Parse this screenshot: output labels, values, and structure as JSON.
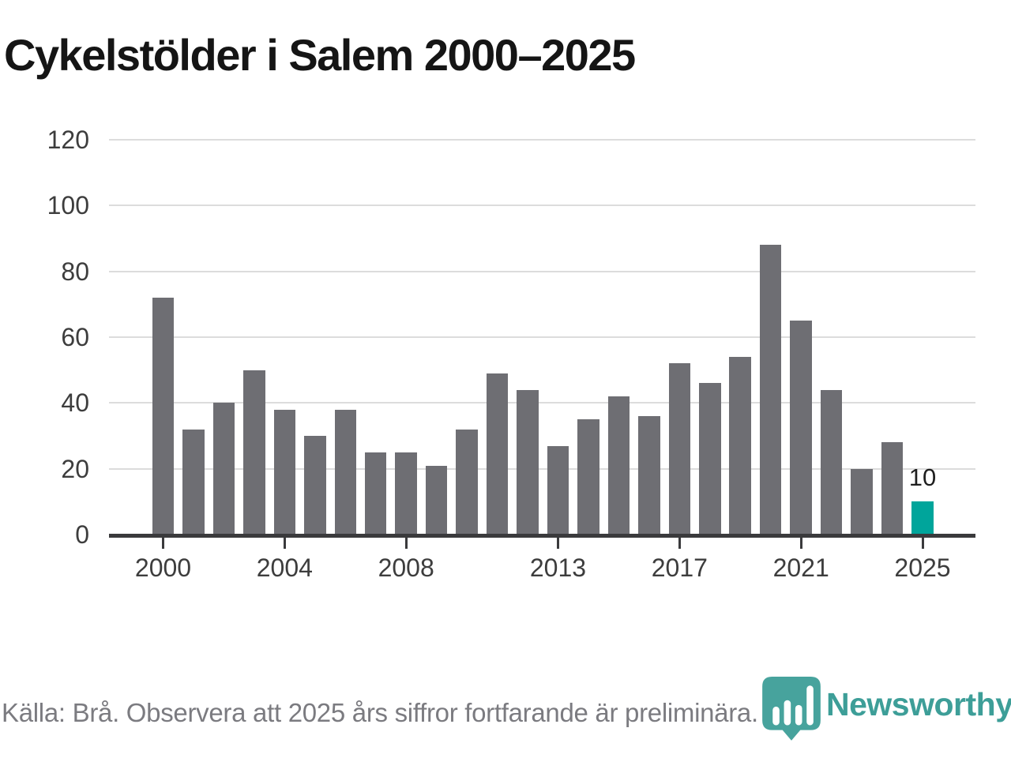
{
  "chart_data": {
    "type": "bar",
    "title": "Cykelstölder i Salem 2000–2025",
    "x": [
      2000,
      2001,
      2002,
      2003,
      2004,
      2005,
      2006,
      2007,
      2008,
      2009,
      2010,
      2011,
      2012,
      2013,
      2014,
      2015,
      2016,
      2017,
      2018,
      2019,
      2020,
      2021,
      2022,
      2023,
      2024,
      2025
    ],
    "values": [
      72,
      32,
      40,
      50,
      38,
      30,
      38,
      25,
      25,
      21,
      32,
      49,
      44,
      27,
      35,
      42,
      36,
      52,
      46,
      54,
      88,
      65,
      44,
      20,
      28,
      10
    ],
    "ylim": [
      0,
      120
    ],
    "yticks": [
      0,
      20,
      40,
      60,
      80,
      100,
      120
    ],
    "xticks": [
      2000,
      2004,
      2008,
      2013,
      2017,
      2021,
      2025
    ],
    "grid": true,
    "legend": false,
    "bar_color": "#6e6e73",
    "highlight_year": 2025,
    "highlight_color": "#00a59b",
    "highlight_label": "10"
  },
  "footer": {
    "source_note": "Källa: Brå. Observera att 2025 års siffror fortfarande är preliminära."
  },
  "branding": {
    "name": "Newsworthy",
    "color": "#3d9e98",
    "icon": "bar-chart-pin-icon"
  }
}
